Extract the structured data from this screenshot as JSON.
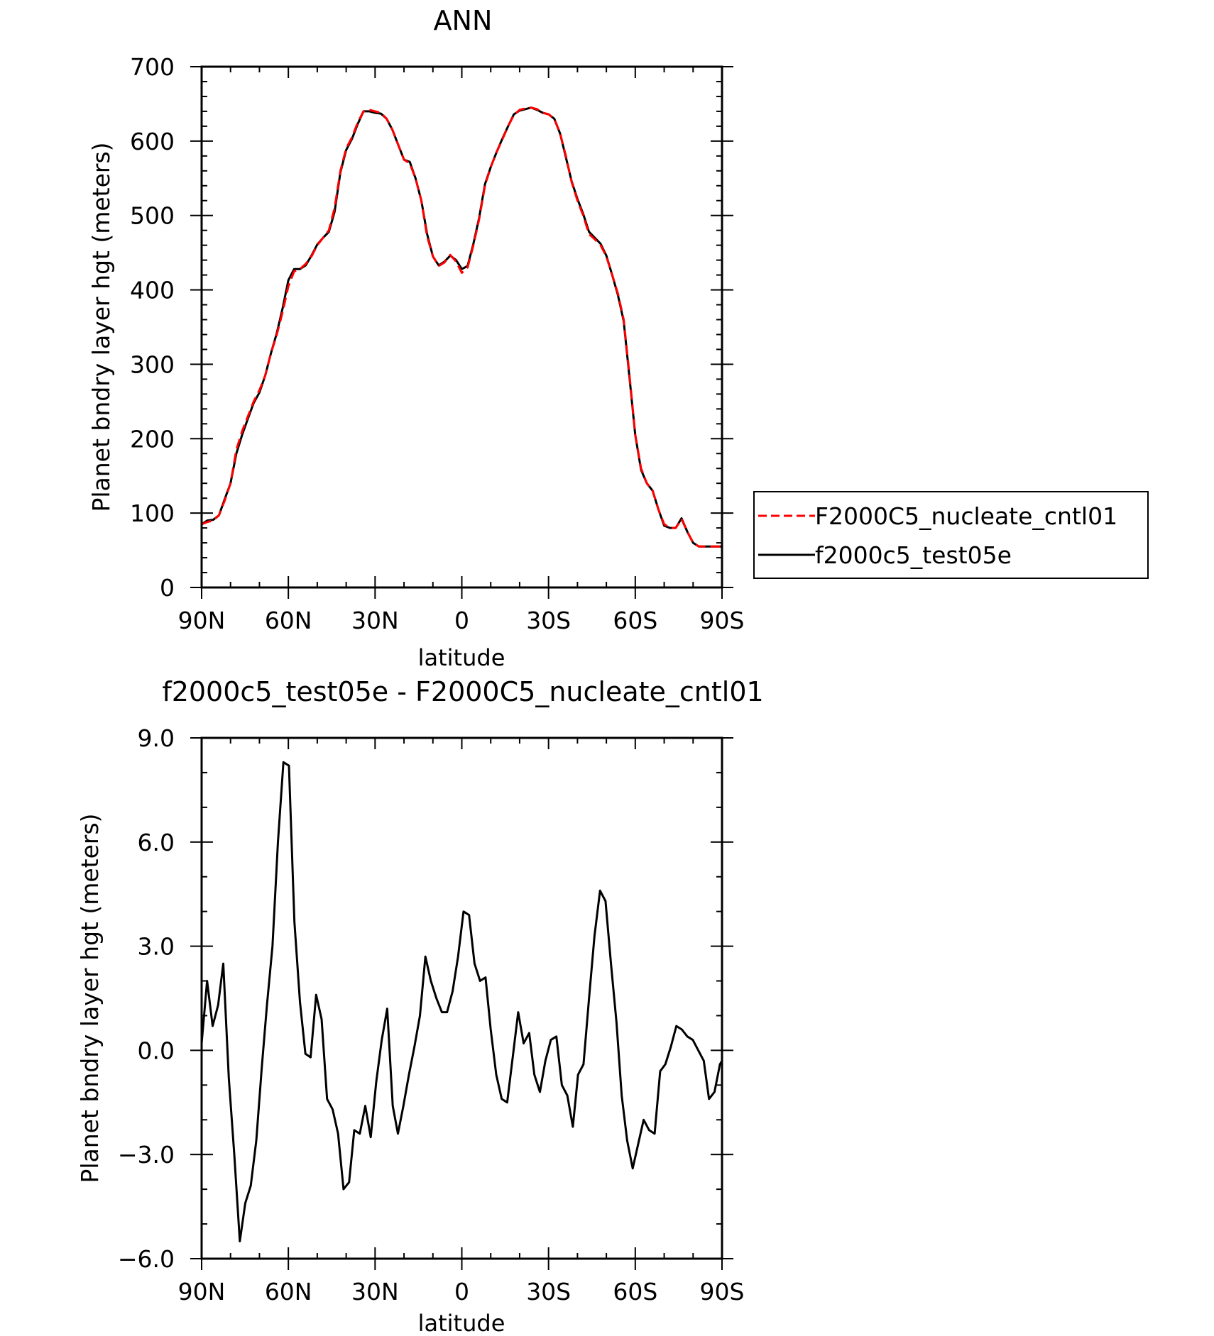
{
  "chart_data": [
    {
      "type": "line",
      "title": "ANN",
      "xlabel": "latitude",
      "ylabel": "Planet bndry layer hgt (meters)",
      "xlim": [
        90,
        -90
      ],
      "ylim": [
        0,
        700
      ],
      "x_ticks": [
        90,
        60,
        30,
        0,
        -30,
        -60,
        -90
      ],
      "x_tick_labels": [
        "90N",
        "60N",
        "30N",
        "0",
        "30S",
        "60S",
        "90S"
      ],
      "y_ticks": [
        0,
        100,
        200,
        300,
        400,
        500,
        600,
        700
      ],
      "y_tick_labels": [
        "0",
        "100",
        "200",
        "300",
        "400",
        "500",
        "600",
        "700"
      ],
      "grid": false,
      "legend_placement": "right",
      "x": [
        90,
        88,
        86,
        84,
        82,
        80,
        78,
        76,
        74,
        72,
        70,
        68,
        66,
        64,
        62,
        60,
        58,
        56,
        54,
        52,
        50,
        48,
        46,
        44,
        42,
        40,
        38,
        36,
        34,
        32,
        30,
        28,
        26,
        24,
        22,
        20,
        18,
        16,
        14,
        12,
        10,
        8,
        6,
        4,
        2,
        0,
        -2,
        -4,
        -6,
        -8,
        -10,
        -12,
        -14,
        -16,
        -18,
        -20,
        -22,
        -24,
        -26,
        -28,
        -30,
        -32,
        -34,
        -36,
        -38,
        -40,
        -42,
        -44,
        -46,
        -48,
        -50,
        -52,
        -54,
        -56,
        -58,
        -60,
        -62,
        -64,
        -66,
        -68,
        -70,
        -72,
        -74,
        -76,
        -78,
        -80,
        -82,
        -84,
        -86,
        -88,
        -90
      ],
      "series": [
        {
          "name": "F2000C5_nucleate_cntl01",
          "color": "#ff0000",
          "dash": "dashed",
          "values": [
            85,
            88,
            90,
            97,
            117,
            140,
            185,
            210,
            230,
            250,
            265,
            285,
            315,
            340,
            370,
            405,
            425,
            428,
            435,
            445,
            460,
            470,
            480,
            510,
            560,
            590,
            605,
            625,
            640,
            642,
            640,
            638,
            630,
            615,
            595,
            575,
            570,
            550,
            520,
            472,
            445,
            432,
            437,
            447,
            438,
            423,
            430,
            460,
            495,
            540,
            565,
            585,
            602,
            620,
            635,
            642,
            644,
            645,
            643,
            638,
            636,
            630,
            610,
            580,
            545,
            520,
            500,
            475,
            468,
            460,
            445,
            420,
            395,
            360,
            285,
            205,
            160,
            140,
            130,
            105,
            85,
            80,
            80,
            92,
            75,
            60,
            55,
            55,
            55,
            55,
            55
          ]
        },
        {
          "name": "f2000c5_test05e",
          "color": "#000000",
          "dash": "solid",
          "values": [
            85,
            90,
            91,
            97,
            119,
            140,
            180,
            205,
            227,
            248,
            262,
            285,
            315,
            342,
            375,
            413,
            428,
            428,
            433,
            446,
            461,
            470,
            478,
            505,
            558,
            588,
            603,
            623,
            640,
            640,
            638,
            637,
            630,
            615,
            595,
            575,
            572,
            550,
            520,
            475,
            445,
            433,
            438,
            446,
            440,
            428,
            432,
            462,
            497,
            542,
            565,
            585,
            603,
            620,
            636,
            641,
            643,
            645,
            642,
            638,
            636,
            630,
            610,
            578,
            546,
            522,
            502,
            478,
            470,
            462,
            446,
            420,
            393,
            358,
            282,
            205,
            158,
            140,
            130,
            105,
            83,
            80,
            80,
            93,
            75,
            60,
            55,
            55,
            55,
            55,
            55
          ]
        }
      ]
    },
    {
      "type": "line",
      "title": "f2000c5_test05e - F2000C5_nucleate_cntl01",
      "xlabel": "latitude",
      "ylabel": "Planet bndry layer hgt (meters)",
      "xlim": [
        90,
        -90
      ],
      "ylim": [
        -6,
        9
      ],
      "x_ticks": [
        90,
        60,
        30,
        0,
        -30,
        -60,
        -90
      ],
      "x_tick_labels": [
        "90N",
        "60N",
        "30N",
        "0",
        "30S",
        "60S",
        "90S"
      ],
      "y_ticks": [
        -6,
        -3,
        0,
        3,
        6,
        9
      ],
      "y_tick_labels": [
        "−6.0",
        "−3.0",
        "0.0",
        "3.0",
        "6.0",
        "9.0"
      ],
      "grid": false,
      "series": [
        {
          "color": "#000000",
          "dash": "solid",
          "x": [
            90,
            88.1,
            86.2,
            84.3,
            82.5,
            80.6,
            78.7,
            76.8,
            74.9,
            73.0,
            71.1,
            69.2,
            67.4,
            65.5,
            63.6,
            61.7,
            59.8,
            57.9,
            56.0,
            54.1,
            52.3,
            50.4,
            48.5,
            46.6,
            44.7,
            42.8,
            40.9,
            39.0,
            37.2,
            35.3,
            33.4,
            31.5,
            29.6,
            27.7,
            25.8,
            23.9,
            22.1,
            20.2,
            18.3,
            16.4,
            14.5,
            12.6,
            10.7,
            8.8,
            6.9,
            5.1,
            3.2,
            1.3,
            -0.6,
            -2.5,
            -4.4,
            -6.3,
            -8.2,
            -10.0,
            -11.9,
            -13.8,
            -15.7,
            -17.6,
            -19.5,
            -21.4,
            -23.3,
            -25.1,
            -27.0,
            -28.9,
            -30.8,
            -32.7,
            -34.6,
            -36.5,
            -38.4,
            -40.2,
            -42.1,
            -44.0,
            -45.9,
            -47.8,
            -49.7,
            -51.6,
            -53.5,
            -55.3,
            -57.2,
            -59.1,
            -61.0,
            -62.9,
            -64.8,
            -66.7,
            -68.6,
            -70.4,
            -72.3,
            -74.2,
            -76.1,
            -78.0,
            -79.9,
            -81.8,
            -83.7,
            -85.5,
            -87.4,
            -89.3,
            -90
          ],
          "values": [
            0.2,
            2.0,
            0.7,
            1.3,
            2.5,
            -0.8,
            -3.0,
            -5.5,
            -4.4,
            -3.9,
            -2.6,
            -0.5,
            1.3,
            3.0,
            6.0,
            8.3,
            8.2,
            3.7,
            1.4,
            -0.1,
            -0.2,
            1.6,
            0.9,
            -1.4,
            -1.7,
            -2.4,
            -4.0,
            -3.8,
            -2.3,
            -2.4,
            -1.6,
            -2.5,
            -0.9,
            0.3,
            1.2,
            -1.6,
            -2.4,
            -1.6,
            -0.7,
            0.1,
            1.0,
            2.7,
            2.0,
            1.5,
            1.1,
            1.1,
            1.7,
            2.7,
            4.0,
            3.9,
            2.5,
            2.0,
            2.1,
            0.6,
            -0.7,
            -1.4,
            -1.5,
            -0.2,
            1.1,
            0.2,
            0.5,
            -0.7,
            -1.2,
            -0.3,
            0.3,
            0.4,
            -1.0,
            -1.3,
            -2.2,
            -0.7,
            -0.4,
            1.5,
            3.3,
            4.6,
            4.3,
            2.5,
            0.8,
            -1.3,
            -2.6,
            -3.4,
            -2.7,
            -2.0,
            -2.3,
            -2.4,
            -0.6,
            -0.4,
            0.1,
            0.7,
            0.6,
            0.4,
            0.3,
            0.0,
            -0.3,
            -1.4,
            -1.2,
            -0.4,
            -0.3
          ]
        }
      ]
    }
  ]
}
